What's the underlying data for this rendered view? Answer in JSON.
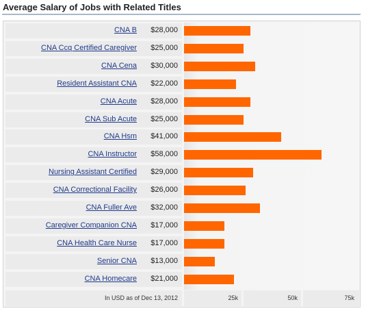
{
  "chart_data": {
    "type": "bar",
    "title": "Average Salary of Jobs with Related Titles",
    "categories": [
      "CNA B",
      "CNA Ccq Certified Caregiver",
      "CNA Cena",
      "Resident Assistant CNA",
      "CNA Acute",
      "CNA Sub Acute",
      "CNA Hsm",
      "CNA Instructor",
      "Nursing Assistant Certified",
      "CNA Correctional Facility",
      "CNA Fuller Ave",
      "Caregiver Companion CNA",
      "CNA Health Care Nurse",
      "Senior CNA",
      "CNA Homecare"
    ],
    "values": [
      28000,
      25000,
      30000,
      22000,
      28000,
      25000,
      41000,
      58000,
      29000,
      26000,
      32000,
      17000,
      17000,
      13000,
      21000
    ],
    "value_labels": [
      "$28,000",
      "$25,000",
      "$30,000",
      "$22,000",
      "$28,000",
      "$25,000",
      "$41,000",
      "$58,000",
      "$29,000",
      "$26,000",
      "$32,000",
      "$17,000",
      "$17,000",
      "$13,000",
      "$21,000"
    ],
    "xlim": [
      0,
      75000
    ],
    "ticks": [
      25000,
      50000,
      75000
    ],
    "tick_labels": [
      "25k",
      "50k",
      "75k"
    ],
    "footnote": "In USD as of Dec 13, 2012",
    "bar_color": "#ff6600",
    "grid": false
  }
}
